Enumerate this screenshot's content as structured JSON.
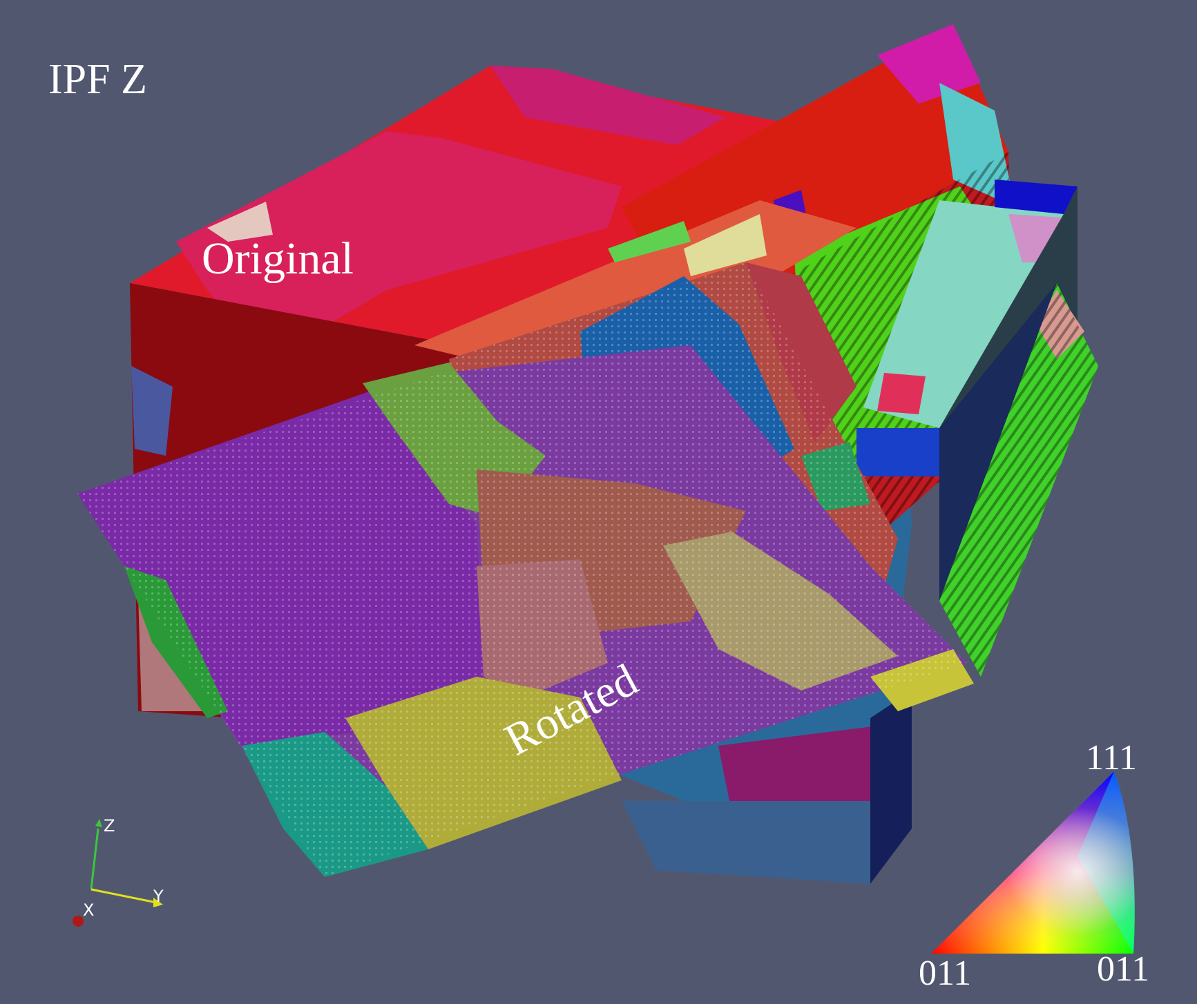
{
  "title": "IPF Z",
  "labels": {
    "original": "Original",
    "rotated": "Rotated"
  },
  "ipf_key": {
    "top": "111",
    "bottom_left": "011",
    "bottom_right": "011"
  },
  "axes": {
    "x": "X",
    "y": "Y",
    "z": "Z"
  },
  "colors": {
    "background": "#525770",
    "red": "#d81a20",
    "magenta": "#d01e82",
    "blue": "#1a4fb8",
    "green": "#50d21a",
    "cyan": "#86d6c4",
    "purple": "#7a2aa6",
    "yellow": "#c2c23a",
    "teal": "#1a9a86"
  }
}
